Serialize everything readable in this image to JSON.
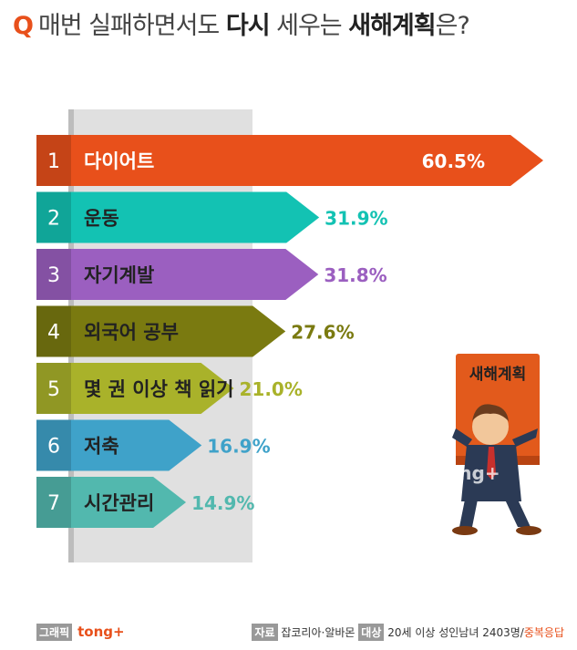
{
  "title": {
    "q": "Q",
    "parts": [
      "매번 실패",
      "하면서도 ",
      "다시",
      " 세우는 ",
      "새해계획",
      "은?"
    ]
  },
  "chart_data": {
    "type": "bar",
    "categories": [
      "다이어트",
      "운동",
      "자기계발",
      "외국어 공부",
      "몇 권 이상 책 읽기",
      "저축",
      "시간관리"
    ],
    "ranks": [
      "1",
      "2",
      "3",
      "4",
      "5",
      "6",
      "7"
    ],
    "values": [
      60.5,
      31.9,
      31.8,
      27.6,
      21.0,
      16.9,
      14.9
    ],
    "value_labels": [
      "60.5%",
      "31.9%",
      "31.8%",
      "27.6%",
      "21.0%",
      "16.9%",
      "14.9%"
    ],
    "unit": "%",
    "colors": [
      "#e8501b",
      "#13c2b3",
      "#9b5fc0",
      "#7a7a10",
      "#a9b22a",
      "#3fa2c9",
      "#52b8ae"
    ]
  },
  "illustration": {
    "sign_text": "새해계획",
    "watermark": "tong+"
  },
  "footer": {
    "credit_tag": "그래픽",
    "credit_brand": "tong+",
    "source_tag": "자료",
    "source_value": "잡코리아·알바몬",
    "target_tag": "대상",
    "target_value": "20세 이상 성인남녀 2403명/",
    "target_note": "중복응답"
  }
}
